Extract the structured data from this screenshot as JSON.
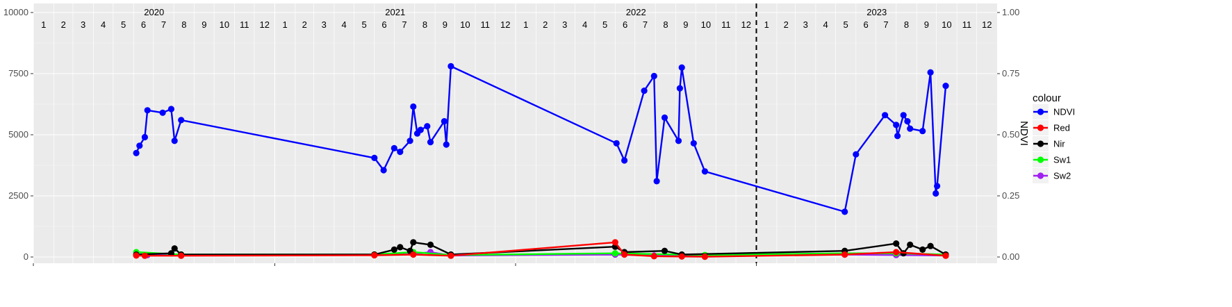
{
  "chart_data": {
    "type": "line",
    "title": "",
    "xlabel": "",
    "ylabel_left": "",
    "ylabel_right": "NDVI",
    "years": [
      "2020",
      "2021",
      "2022",
      "2023"
    ],
    "months": [
      "1",
      "2",
      "3",
      "4",
      "5",
      "6",
      "7",
      "8",
      "9",
      "10",
      "11",
      "12"
    ],
    "xlim": [
      "2020-01-01",
      "2024-01-01"
    ],
    "ylim_left": [
      0,
      10000
    ],
    "ylim_right": [
      0,
      1
    ],
    "yticks_left": [
      0,
      2500,
      5000,
      7500,
      10000
    ],
    "ytick_labels_left": [
      "0",
      "2500",
      "5000",
      "7500",
      "10000"
    ],
    "yticks_right": [
      0,
      0.25,
      0.5,
      0.75,
      1
    ],
    "ytick_labels_right": [
      "0.00",
      "0.25",
      "0.50",
      "0.75",
      "1.00"
    ],
    "vline_date": "2023-01-01",
    "grid": true,
    "legend": {
      "title": "colour",
      "position": "right"
    },
    "series": [
      {
        "name": "NDVI",
        "color": "#0000ff",
        "axis": "right",
        "points": [
          [
            "2020-06-05",
            0.425
          ],
          [
            "2020-06-10",
            0.455
          ],
          [
            "2020-06-18",
            0.49
          ],
          [
            "2020-06-22",
            0.6
          ],
          [
            "2020-07-15",
            0.59
          ],
          [
            "2020-07-28",
            0.605
          ],
          [
            "2020-08-02",
            0.475
          ],
          [
            "2020-08-12",
            0.56
          ],
          [
            "2021-06-01",
            0.405
          ],
          [
            "2021-06-15",
            0.355
          ],
          [
            "2021-07-01",
            0.445
          ],
          [
            "2021-07-10",
            0.43
          ],
          [
            "2021-07-25",
            0.475
          ],
          [
            "2021-07-30",
            0.615
          ],
          [
            "2021-08-05",
            0.505
          ],
          [
            "2021-08-10",
            0.52
          ],
          [
            "2021-08-20",
            0.535
          ],
          [
            "2021-08-25",
            0.47
          ],
          [
            "2021-09-15",
            0.555
          ],
          [
            "2021-09-18",
            0.46
          ],
          [
            "2021-09-25",
            0.78
          ],
          [
            "2022-06-03",
            0.465
          ],
          [
            "2022-06-15",
            0.395
          ],
          [
            "2022-07-15",
            0.68
          ],
          [
            "2022-07-30",
            0.74
          ],
          [
            "2022-08-03",
            0.31
          ],
          [
            "2022-08-15",
            0.57
          ],
          [
            "2022-09-05",
            0.475
          ],
          [
            "2022-09-07",
            0.69
          ],
          [
            "2022-09-10",
            0.775
          ],
          [
            "2022-09-28",
            0.465
          ],
          [
            "2022-10-15",
            0.35
          ],
          [
            "2023-05-15",
            0.185
          ],
          [
            "2023-06-01",
            0.42
          ],
          [
            "2023-07-15",
            0.58
          ],
          [
            "2023-08-01",
            0.54
          ],
          [
            "2023-08-03",
            0.495
          ],
          [
            "2023-08-12",
            0.58
          ],
          [
            "2023-08-18",
            0.555
          ],
          [
            "2023-08-22",
            0.525
          ],
          [
            "2023-09-10",
            0.515
          ],
          [
            "2023-09-22",
            0.755
          ],
          [
            "2023-09-30",
            0.26
          ],
          [
            "2023-10-02",
            0.29
          ],
          [
            "2023-10-15",
            0.7
          ]
        ]
      },
      {
        "name": "Red",
        "color": "#ff0000",
        "axis": "left",
        "points": [
          [
            "2020-06-05",
            60
          ],
          [
            "2020-06-18",
            50
          ],
          [
            "2020-08-12",
            50
          ],
          [
            "2021-06-01",
            70
          ],
          [
            "2021-07-30",
            100
          ],
          [
            "2021-09-25",
            50
          ],
          [
            "2022-06-01",
            600
          ],
          [
            "2022-06-15",
            100
          ],
          [
            "2022-07-30",
            30
          ],
          [
            "2022-09-10",
            20
          ],
          [
            "2022-10-15",
            10
          ],
          [
            "2023-05-15",
            100
          ],
          [
            "2023-08-01",
            200
          ],
          [
            "2023-10-15",
            50
          ]
        ]
      },
      {
        "name": "Nir",
        "color": "#000000",
        "axis": "left",
        "points": [
          [
            "2020-06-05",
            100
          ],
          [
            "2020-07-28",
            150
          ],
          [
            "2020-08-02",
            350
          ],
          [
            "2020-08-12",
            100
          ],
          [
            "2021-06-01",
            100
          ],
          [
            "2021-07-01",
            300
          ],
          [
            "2021-07-10",
            400
          ],
          [
            "2021-07-25",
            250
          ],
          [
            "2021-07-30",
            600
          ],
          [
            "2021-08-25",
            500
          ],
          [
            "2021-09-25",
            100
          ],
          [
            "2022-06-01",
            420
          ],
          [
            "2022-06-15",
            200
          ],
          [
            "2022-08-15",
            250
          ],
          [
            "2022-09-10",
            100
          ],
          [
            "2023-05-15",
            250
          ],
          [
            "2023-08-01",
            550
          ],
          [
            "2023-08-12",
            150
          ],
          [
            "2023-08-22",
            500
          ],
          [
            "2023-09-10",
            300
          ],
          [
            "2023-09-22",
            450
          ],
          [
            "2023-10-15",
            100
          ]
        ]
      },
      {
        "name": "Sw1",
        "color": "#00ff00",
        "axis": "left",
        "points": [
          [
            "2020-06-05",
            200
          ],
          [
            "2020-08-12",
            100
          ],
          [
            "2021-06-01",
            100
          ],
          [
            "2021-07-30",
            200
          ],
          [
            "2021-09-25",
            80
          ],
          [
            "2022-06-01",
            150
          ],
          [
            "2022-10-15",
            80
          ],
          [
            "2023-05-15",
            150
          ],
          [
            "2023-08-01",
            150
          ],
          [
            "2023-10-15",
            100
          ]
        ]
      },
      {
        "name": "Sw2",
        "color": "#a020f0",
        "axis": "left",
        "points": [
          [
            "2020-06-05",
            100
          ],
          [
            "2020-06-22",
            80
          ],
          [
            "2020-08-12",
            60
          ],
          [
            "2021-06-01",
            80
          ],
          [
            "2021-07-30",
            120
          ],
          [
            "2021-08-25",
            200
          ],
          [
            "2021-09-25",
            60
          ],
          [
            "2022-06-01",
            100
          ],
          [
            "2022-07-30",
            60
          ],
          [
            "2022-10-15",
            50
          ],
          [
            "2023-05-15",
            100
          ],
          [
            "2023-08-01",
            80
          ],
          [
            "2023-10-15",
            60
          ]
        ]
      }
    ]
  }
}
